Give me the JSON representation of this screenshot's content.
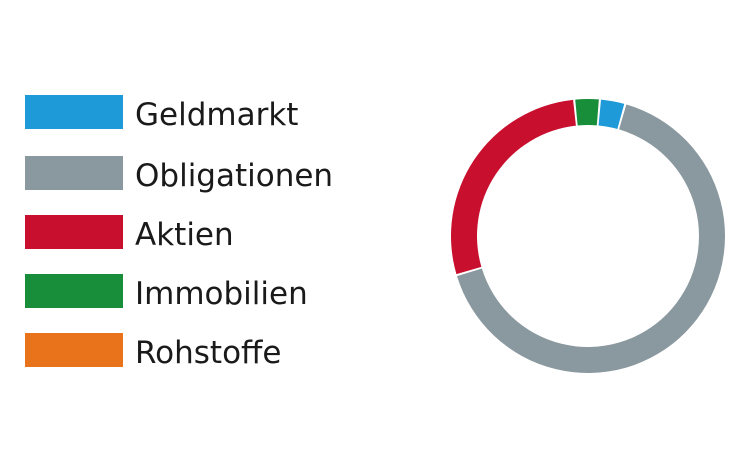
{
  "chart_data": {
    "type": "pie",
    "style": "donut",
    "legend_position": "left",
    "categories": [
      "Geldmarkt",
      "Obligationen",
      "Aktien",
      "Immobilien",
      "Rohstoffe"
    ],
    "values": [
      3,
      66,
      28,
      3,
      0
    ],
    "colors": [
      "#1f9ad9",
      "#8a989f",
      "#c8102e",
      "#188d3a",
      "#e8731a"
    ]
  }
}
